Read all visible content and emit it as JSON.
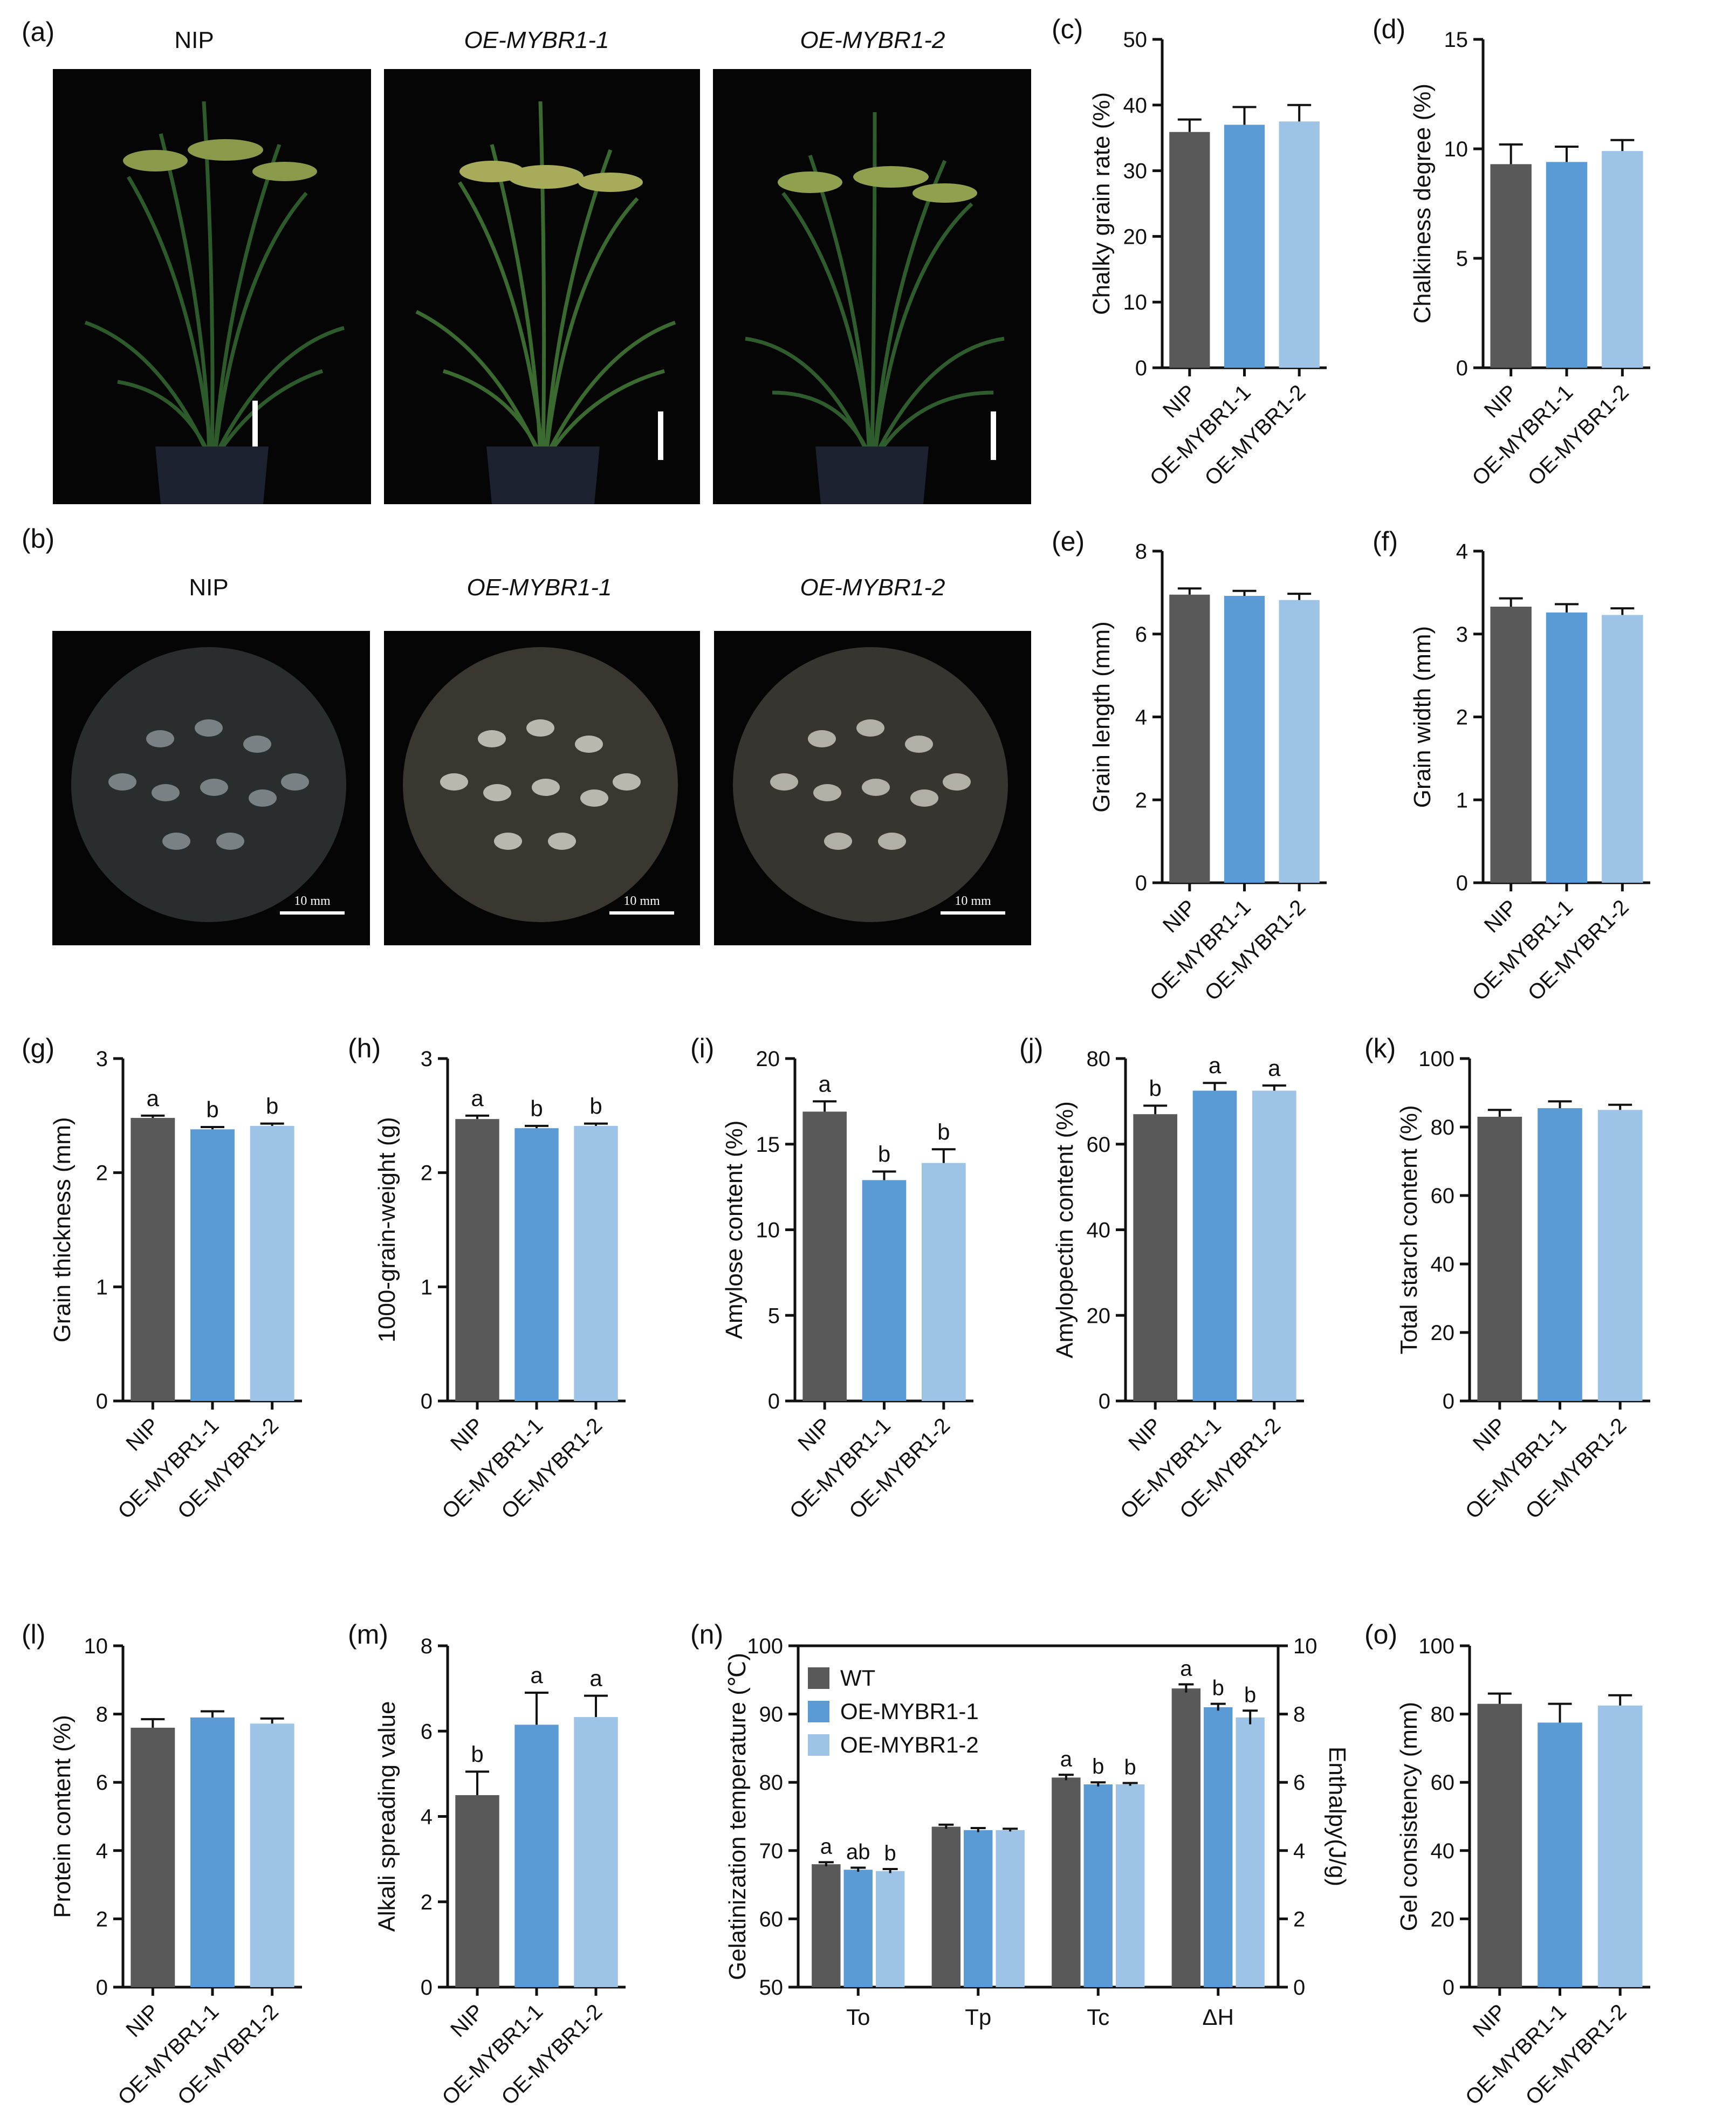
{
  "panels": {
    "a": {
      "label": "(a)",
      "titles": [
        "NIP",
        "OE-MYBR1-1",
        "OE-MYBR1-2"
      ]
    },
    "b": {
      "label": "(b)",
      "titles": [
        "NIP",
        "OE-MYBR1-1",
        "OE-MYBR1-2"
      ],
      "scale_bar": "10 mm"
    }
  },
  "colors": {
    "NIP": "#595959",
    "OE-MYBR1-1": "#5b9bd5",
    "OE-MYBR1-2": "#9dc3e6",
    "text": "#111111"
  },
  "chart_data": [
    {
      "id": "c",
      "panel_label": "(c)",
      "type": "bar",
      "categories": [
        "NIP",
        "OE-MYBR1-1",
        "OE-MYBR1-2"
      ],
      "values": [
        35.9,
        37.0,
        37.5
      ],
      "errors": [
        1.9,
        2.7,
        2.5
      ],
      "letters": [
        "",
        "",
        ""
      ],
      "ylabel": "Chalky grain rate (%)",
      "ylim": [
        0,
        50
      ],
      "yticks": [
        0,
        10,
        20,
        30,
        40,
        50
      ]
    },
    {
      "id": "d",
      "panel_label": "(d)",
      "type": "bar",
      "categories": [
        "NIP",
        "OE-MYBR1-1",
        "OE-MYBR1-2"
      ],
      "values": [
        9.3,
        9.4,
        9.9
      ],
      "errors": [
        0.9,
        0.7,
        0.5
      ],
      "letters": [
        "",
        "",
        ""
      ],
      "ylabel": "Chalkiness degree (%)",
      "ylim": [
        0,
        15
      ],
      "yticks": [
        0,
        5,
        10,
        15
      ]
    },
    {
      "id": "e",
      "panel_label": "(e)",
      "type": "bar",
      "categories": [
        "NIP",
        "OE-MYBR1-1",
        "OE-MYBR1-2"
      ],
      "values": [
        6.95,
        6.92,
        6.82
      ],
      "errors": [
        0.15,
        0.12,
        0.15
      ],
      "letters": [
        "",
        "",
        ""
      ],
      "ylabel": "Grain length (mm)",
      "ylim": [
        0,
        8
      ],
      "yticks": [
        0,
        2,
        4,
        6,
        8
      ]
    },
    {
      "id": "f",
      "panel_label": "(f)",
      "type": "bar",
      "categories": [
        "NIP",
        "OE-MYBR1-1",
        "OE-MYBR1-2"
      ],
      "values": [
        3.33,
        3.26,
        3.23
      ],
      "errors": [
        0.1,
        0.1,
        0.08
      ],
      "letters": [
        "",
        "",
        ""
      ],
      "ylabel": "Grain width (mm)",
      "ylim": [
        0,
        4
      ],
      "yticks": [
        0,
        1,
        2,
        3,
        4
      ]
    },
    {
      "id": "g",
      "panel_label": "(g)",
      "type": "bar",
      "categories": [
        "NIP",
        "OE-MYBR1-1",
        "OE-MYBR1-2"
      ],
      "values": [
        2.48,
        2.38,
        2.41
      ],
      "errors": [
        0.02,
        0.02,
        0.02
      ],
      "letters": [
        "a",
        "b",
        "b"
      ],
      "ylabel": "Grain thickness (mm)",
      "ylim": [
        0,
        3
      ],
      "yticks": [
        0,
        1,
        2,
        3
      ]
    },
    {
      "id": "h",
      "panel_label": "(h)",
      "type": "bar",
      "categories": [
        "NIP",
        "OE-MYBR1-1",
        "OE-MYBR1-2"
      ],
      "values": [
        2.47,
        2.39,
        2.41
      ],
      "errors": [
        0.03,
        0.02,
        0.02
      ],
      "letters": [
        "a",
        "b",
        "b"
      ],
      "ylabel": "1000-grain-weight (g)",
      "ylim": [
        0,
        3
      ],
      "yticks": [
        0,
        1,
        2,
        3
      ]
    },
    {
      "id": "i",
      "panel_label": "(i)",
      "type": "bar",
      "categories": [
        "NIP",
        "OE-MYBR1-1",
        "OE-MYBR1-2"
      ],
      "values": [
        16.9,
        12.9,
        13.9
      ],
      "errors": [
        0.6,
        0.5,
        0.8
      ],
      "letters": [
        "a",
        "b",
        "b"
      ],
      "ylabel": "Amylose content (%)",
      "ylim": [
        0,
        20
      ],
      "yticks": [
        0,
        5,
        10,
        15,
        20
      ]
    },
    {
      "id": "j",
      "panel_label": "(j)",
      "type": "bar",
      "categories": [
        "NIP",
        "OE-MYBR1-1",
        "OE-MYBR1-2"
      ],
      "values": [
        67.0,
        72.5,
        72.5
      ],
      "errors": [
        2.0,
        1.8,
        1.2
      ],
      "letters": [
        "b",
        "a",
        "a"
      ],
      "ylabel": "Amylopectin content (%)",
      "ylim": [
        0,
        80
      ],
      "yticks": [
        0,
        20,
        40,
        60,
        80
      ]
    },
    {
      "id": "k",
      "panel_label": "(k)",
      "type": "bar",
      "categories": [
        "NIP",
        "OE-MYBR1-1",
        "OE-MYBR1-2"
      ],
      "values": [
        83.0,
        85.5,
        85.0
      ],
      "errors": [
        2.0,
        2.0,
        1.5
      ],
      "letters": [
        "",
        "",
        ""
      ],
      "ylabel": "Total starch content (%)",
      "ylim": [
        0,
        100
      ],
      "yticks": [
        0,
        20,
        40,
        60,
        80,
        100
      ]
    },
    {
      "id": "l",
      "panel_label": "(l)",
      "type": "bar",
      "categories": [
        "NIP",
        "OE-MYBR1-1",
        "OE-MYBR1-2"
      ],
      "values": [
        7.6,
        7.9,
        7.72
      ],
      "errors": [
        0.25,
        0.18,
        0.15
      ],
      "letters": [
        "",
        "",
        ""
      ],
      "ylabel": "Protein content (%)",
      "ylim": [
        0,
        10
      ],
      "yticks": [
        0,
        2,
        4,
        6,
        8,
        10
      ]
    },
    {
      "id": "m",
      "panel_label": "(m)",
      "type": "bar",
      "categories": [
        "NIP",
        "OE-MYBR1-1",
        "OE-MYBR1-2"
      ],
      "values": [
        4.5,
        6.15,
        6.33
      ],
      "errors": [
        0.55,
        0.75,
        0.5
      ],
      "letters": [
        "b",
        "a",
        "a"
      ],
      "ylabel": "Alkali spreading value",
      "ylim": [
        0,
        8
      ],
      "yticks": [
        0,
        2,
        4,
        6,
        8
      ]
    },
    {
      "id": "n",
      "panel_label": "(n)",
      "type": "bar",
      "categories": [
        "To",
        "Tp",
        "Tc",
        "ΔH"
      ],
      "series": [
        {
          "name": "WT",
          "values": [
            68.0,
            73.5,
            80.7,
            8.75
          ],
          "errors": [
            0.3,
            0.3,
            0.4,
            0.12
          ],
          "letters": [
            "a",
            "",
            "a",
            "a"
          ]
        },
        {
          "name": "OE-MYBR1-1",
          "values": [
            67.2,
            73.0,
            79.7,
            8.2
          ],
          "errors": [
            0.3,
            0.3,
            0.3,
            0.1
          ],
          "letters": [
            "ab",
            "",
            "b",
            "b"
          ]
        },
        {
          "name": "OE-MYBR1-2",
          "values": [
            67.0,
            73.0,
            79.7,
            7.9
          ],
          "errors": [
            0.3,
            0.2,
            0.2,
            0.2
          ],
          "letters": [
            "b",
            "",
            "b",
            "b"
          ]
        }
      ],
      "ylabel": "Gelatinization temperature (℃)",
      "ylim": [
        50,
        100
      ],
      "yticks": [
        50,
        60,
        70,
        80,
        90,
        100
      ],
      "y2label": "Enthalpy(J/g)",
      "y2lim": [
        0,
        10
      ],
      "y2ticks": [
        0,
        2,
        4,
        6,
        8,
        10
      ],
      "secondary_axis_categories": [
        "ΔH"
      ],
      "legend": "top-left"
    },
    {
      "id": "o",
      "panel_label": "(o)",
      "type": "bar",
      "categories": [
        "NIP",
        "OE-MYBR1-1",
        "OE-MYBR1-2"
      ],
      "values": [
        83.0,
        77.5,
        82.5
      ],
      "errors": [
        3.0,
        5.5,
        3.0
      ],
      "letters": [
        "",
        "",
        ""
      ],
      "ylabel": "Gel consistency (mm)",
      "ylim": [
        0,
        100
      ],
      "yticks": [
        0,
        20,
        40,
        60,
        80,
        100
      ]
    }
  ]
}
